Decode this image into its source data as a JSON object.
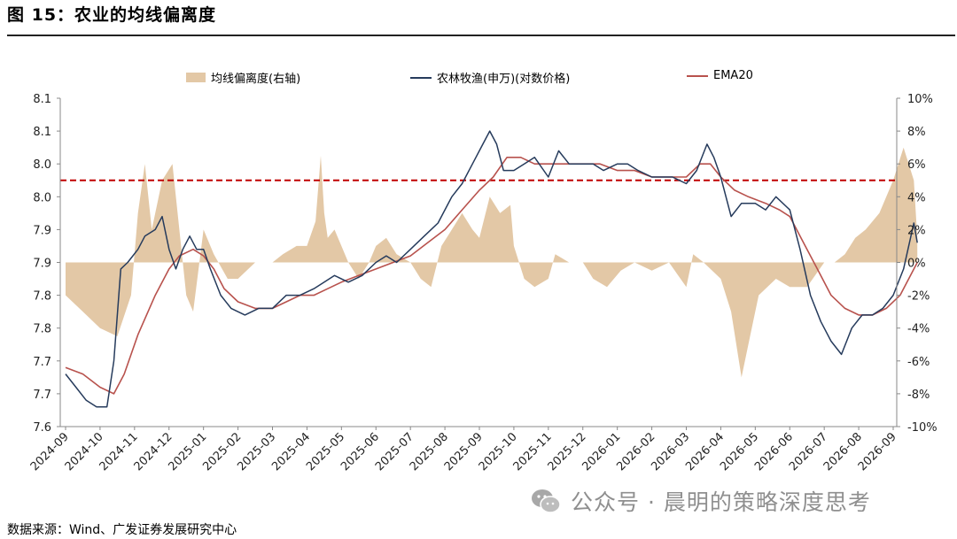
{
  "title": "图 15：农业的均线偏离度",
  "source": "数据来源：Wind、广发证券发展研究中心",
  "watermark": "公众号 · 晨明的策略深度思考",
  "watermark_icon": "wechat-icon",
  "colors": {
    "deviation": "#e3c8a6",
    "index": "#263b5c",
    "ema": "#b8524d",
    "threshold": "#c00000",
    "axis": "#888888"
  },
  "chart_data": {
    "type": "line",
    "legend_position": "top",
    "grid": false,
    "x_ticks": [
      "2024-09",
      "2024-10",
      "2024-11",
      "2024-12",
      "2025-01",
      "2025-02",
      "2025-03",
      "2025-04",
      "2025-05",
      "2025-06",
      "2025-07",
      "2025-08",
      "2025-09",
      "2025-10",
      "2025-11",
      "2025-12",
      "2026-01",
      "2026-02",
      "2026-03",
      "2026-04",
      "2026-05",
      "2026-06",
      "2026-07",
      "2026-08",
      "2026-09"
    ],
    "y_left_ticks": [
      "7.6",
      "7.7",
      "7.7",
      "7.8",
      "7.8",
      "7.9",
      "7.9",
      "8.0",
      "8.0",
      "8.1",
      "8.1"
    ],
    "y_left_range": [
      7.6,
      8.1
    ],
    "y_right_ticks": [
      "-10%",
      "-8%",
      "-6%",
      "-4%",
      "-2%",
      "0%",
      "2%",
      "4%",
      "6%",
      "8%",
      "10%"
    ],
    "y_right_range": [
      -10,
      10
    ],
    "threshold": {
      "value": 5,
      "axis": "right",
      "style": "dashed"
    },
    "series": [
      {
        "name": "均线偏离度(右轴)",
        "type": "area",
        "axis": "right",
        "points": [
          [
            0,
            -2
          ],
          [
            0.5,
            -3
          ],
          [
            1,
            -4
          ],
          [
            1.5,
            -4.5
          ],
          [
            1.9,
            -2
          ],
          [
            2.1,
            3
          ],
          [
            2.3,
            6
          ],
          [
            2.5,
            2
          ],
          [
            2.8,
            5
          ],
          [
            3.1,
            6
          ],
          [
            3.3,
            2
          ],
          [
            3.5,
            -2
          ],
          [
            3.7,
            -3
          ],
          [
            4,
            2
          ],
          [
            4.3,
            0.5
          ],
          [
            4.7,
            -1
          ],
          [
            5,
            -1
          ],
          [
            5.5,
            0
          ],
          [
            6,
            0
          ],
          [
            6.3,
            0.5
          ],
          [
            6.7,
            1
          ],
          [
            7,
            1
          ],
          [
            7.25,
            2.5
          ],
          [
            7.4,
            6.5
          ],
          [
            7.5,
            3
          ],
          [
            7.6,
            1.5
          ],
          [
            7.8,
            2
          ],
          [
            8,
            1
          ],
          [
            8.2,
            0
          ],
          [
            8.5,
            -1
          ],
          [
            8.8,
            0
          ],
          [
            9,
            1
          ],
          [
            9.3,
            1.5
          ],
          [
            9.6,
            0.5
          ],
          [
            10,
            0
          ],
          [
            10.3,
            -1
          ],
          [
            10.6,
            -1.5
          ],
          [
            10.9,
            1
          ],
          [
            11.2,
            2
          ],
          [
            11.5,
            3
          ],
          [
            11.8,
            2
          ],
          [
            12,
            1.5
          ],
          [
            12.3,
            4
          ],
          [
            12.6,
            3
          ],
          [
            12.9,
            3.5
          ],
          [
            13,
            1
          ],
          [
            13.3,
            -1
          ],
          [
            13.6,
            -1.5
          ],
          [
            14,
            -1
          ],
          [
            14.2,
            0.5
          ],
          [
            14.6,
            0
          ],
          [
            15,
            0
          ],
          [
            15.3,
            -1
          ],
          [
            15.7,
            -1.5
          ],
          [
            16.1,
            -0.5
          ],
          [
            16.5,
            0
          ],
          [
            17,
            -0.5
          ],
          [
            17.5,
            0
          ],
          [
            18,
            -1.5
          ],
          [
            18.2,
            0.5
          ],
          [
            18.5,
            0
          ],
          [
            19,
            -1
          ],
          [
            19.3,
            -3
          ],
          [
            19.6,
            -7
          ],
          [
            19.9,
            -4
          ],
          [
            20.1,
            -2
          ],
          [
            20.6,
            -1
          ],
          [
            21,
            -1.5
          ],
          [
            21.5,
            -1.5
          ],
          [
            22,
            0
          ],
          [
            22.3,
            0
          ],
          [
            22.6,
            0.5
          ],
          [
            22.9,
            1.5
          ],
          [
            23.2,
            2
          ],
          [
            23.6,
            3
          ],
          [
            24,
            5
          ],
          [
            24.3,
            7
          ],
          [
            24.6,
            5
          ],
          [
            24.7,
            1.5
          ]
        ]
      },
      {
        "name": "农林牧渔(申万)(对数价格)",
        "type": "line",
        "axis": "left",
        "points": [
          [
            0,
            7.68
          ],
          [
            0.3,
            7.66
          ],
          [
            0.6,
            7.64
          ],
          [
            0.9,
            7.63
          ],
          [
            1.2,
            7.63
          ],
          [
            1.4,
            7.7
          ],
          [
            1.6,
            7.84
          ],
          [
            1.8,
            7.85
          ],
          [
            1.95,
            7.86
          ],
          [
            2.1,
            7.87
          ],
          [
            2.3,
            7.89
          ],
          [
            2.6,
            7.9
          ],
          [
            2.8,
            7.92
          ],
          [
            3,
            7.87
          ],
          [
            3.2,
            7.84
          ],
          [
            3.4,
            7.87
          ],
          [
            3.6,
            7.89
          ],
          [
            3.8,
            7.87
          ],
          [
            4,
            7.87
          ],
          [
            4.2,
            7.84
          ],
          [
            4.5,
            7.8
          ],
          [
            4.8,
            7.78
          ],
          [
            5.2,
            7.77
          ],
          [
            5.6,
            7.78
          ],
          [
            6,
            7.78
          ],
          [
            6.4,
            7.8
          ],
          [
            6.8,
            7.8
          ],
          [
            7.2,
            7.81
          ],
          [
            7.5,
            7.82
          ],
          [
            7.8,
            7.83
          ],
          [
            8.2,
            7.82
          ],
          [
            8.6,
            7.83
          ],
          [
            9,
            7.85
          ],
          [
            9.3,
            7.86
          ],
          [
            9.6,
            7.85
          ],
          [
            10,
            7.87
          ],
          [
            10.4,
            7.89
          ],
          [
            10.8,
            7.91
          ],
          [
            11.2,
            7.95
          ],
          [
            11.5,
            7.97
          ],
          [
            11.8,
            8.0
          ],
          [
            12.1,
            8.03
          ],
          [
            12.3,
            8.05
          ],
          [
            12.5,
            8.03
          ],
          [
            12.7,
            7.99
          ],
          [
            13,
            7.99
          ],
          [
            13.3,
            8.0
          ],
          [
            13.6,
            8.01
          ],
          [
            14,
            7.98
          ],
          [
            14.3,
            8.02
          ],
          [
            14.6,
            8.0
          ],
          [
            15,
            8.0
          ],
          [
            15.3,
            8.0
          ],
          [
            15.6,
            7.99
          ],
          [
            16,
            8.0
          ],
          [
            16.3,
            8.0
          ],
          [
            16.6,
            7.99
          ],
          [
            17,
            7.98
          ],
          [
            17.3,
            7.98
          ],
          [
            17.6,
            7.98
          ],
          [
            18,
            7.97
          ],
          [
            18.3,
            7.99
          ],
          [
            18.6,
            8.03
          ],
          [
            18.8,
            8.01
          ],
          [
            19,
            7.98
          ],
          [
            19.3,
            7.92
          ],
          [
            19.6,
            7.94
          ],
          [
            20,
            7.94
          ],
          [
            20.3,
            7.93
          ],
          [
            20.6,
            7.95
          ],
          [
            21,
            7.93
          ],
          [
            21.3,
            7.87
          ],
          [
            21.6,
            7.8
          ],
          [
            21.9,
            7.76
          ],
          [
            22.2,
            7.73
          ],
          [
            22.5,
            7.71
          ],
          [
            22.8,
            7.75
          ],
          [
            23.1,
            7.77
          ],
          [
            23.4,
            7.77
          ],
          [
            23.7,
            7.78
          ],
          [
            24,
            7.8
          ],
          [
            24.3,
            7.84
          ],
          [
            24.6,
            7.91
          ],
          [
            24.7,
            7.88
          ]
        ]
      },
      {
        "name": "EMA20",
        "type": "line",
        "axis": "left",
        "points": [
          [
            0,
            7.69
          ],
          [
            0.5,
            7.68
          ],
          [
            1,
            7.66
          ],
          [
            1.4,
            7.65
          ],
          [
            1.7,
            7.68
          ],
          [
            2.1,
            7.74
          ],
          [
            2.6,
            7.8
          ],
          [
            3,
            7.84
          ],
          [
            3.3,
            7.86
          ],
          [
            3.7,
            7.87
          ],
          [
            4,
            7.86
          ],
          [
            4.3,
            7.84
          ],
          [
            4.6,
            7.81
          ],
          [
            5,
            7.79
          ],
          [
            5.5,
            7.78
          ],
          [
            6,
            7.78
          ],
          [
            6.4,
            7.79
          ],
          [
            6.8,
            7.8
          ],
          [
            7.2,
            7.8
          ],
          [
            7.6,
            7.81
          ],
          [
            8,
            7.82
          ],
          [
            8.5,
            7.83
          ],
          [
            9,
            7.84
          ],
          [
            9.5,
            7.85
          ],
          [
            10,
            7.86
          ],
          [
            10.5,
            7.88
          ],
          [
            11,
            7.9
          ],
          [
            11.5,
            7.93
          ],
          [
            12,
            7.96
          ],
          [
            12.4,
            7.98
          ],
          [
            12.8,
            8.01
          ],
          [
            13.2,
            8.01
          ],
          [
            13.6,
            8.0
          ],
          [
            14,
            8.0
          ],
          [
            14.5,
            8.0
          ],
          [
            15,
            8.0
          ],
          [
            15.5,
            8.0
          ],
          [
            16,
            7.99
          ],
          [
            16.5,
            7.99
          ],
          [
            17,
            7.98
          ],
          [
            17.5,
            7.98
          ],
          [
            18,
            7.98
          ],
          [
            18.4,
            8.0
          ],
          [
            18.7,
            8.0
          ],
          [
            19,
            7.98
          ],
          [
            19.4,
            7.96
          ],
          [
            19.8,
            7.95
          ],
          [
            20.3,
            7.94
          ],
          [
            20.7,
            7.93
          ],
          [
            21,
            7.92
          ],
          [
            21.4,
            7.88
          ],
          [
            21.8,
            7.84
          ],
          [
            22.2,
            7.8
          ],
          [
            22.6,
            7.78
          ],
          [
            23,
            7.77
          ],
          [
            23.4,
            7.77
          ],
          [
            23.8,
            7.78
          ],
          [
            24.2,
            7.8
          ],
          [
            24.5,
            7.83
          ],
          [
            24.7,
            7.85
          ]
        ]
      }
    ]
  }
}
